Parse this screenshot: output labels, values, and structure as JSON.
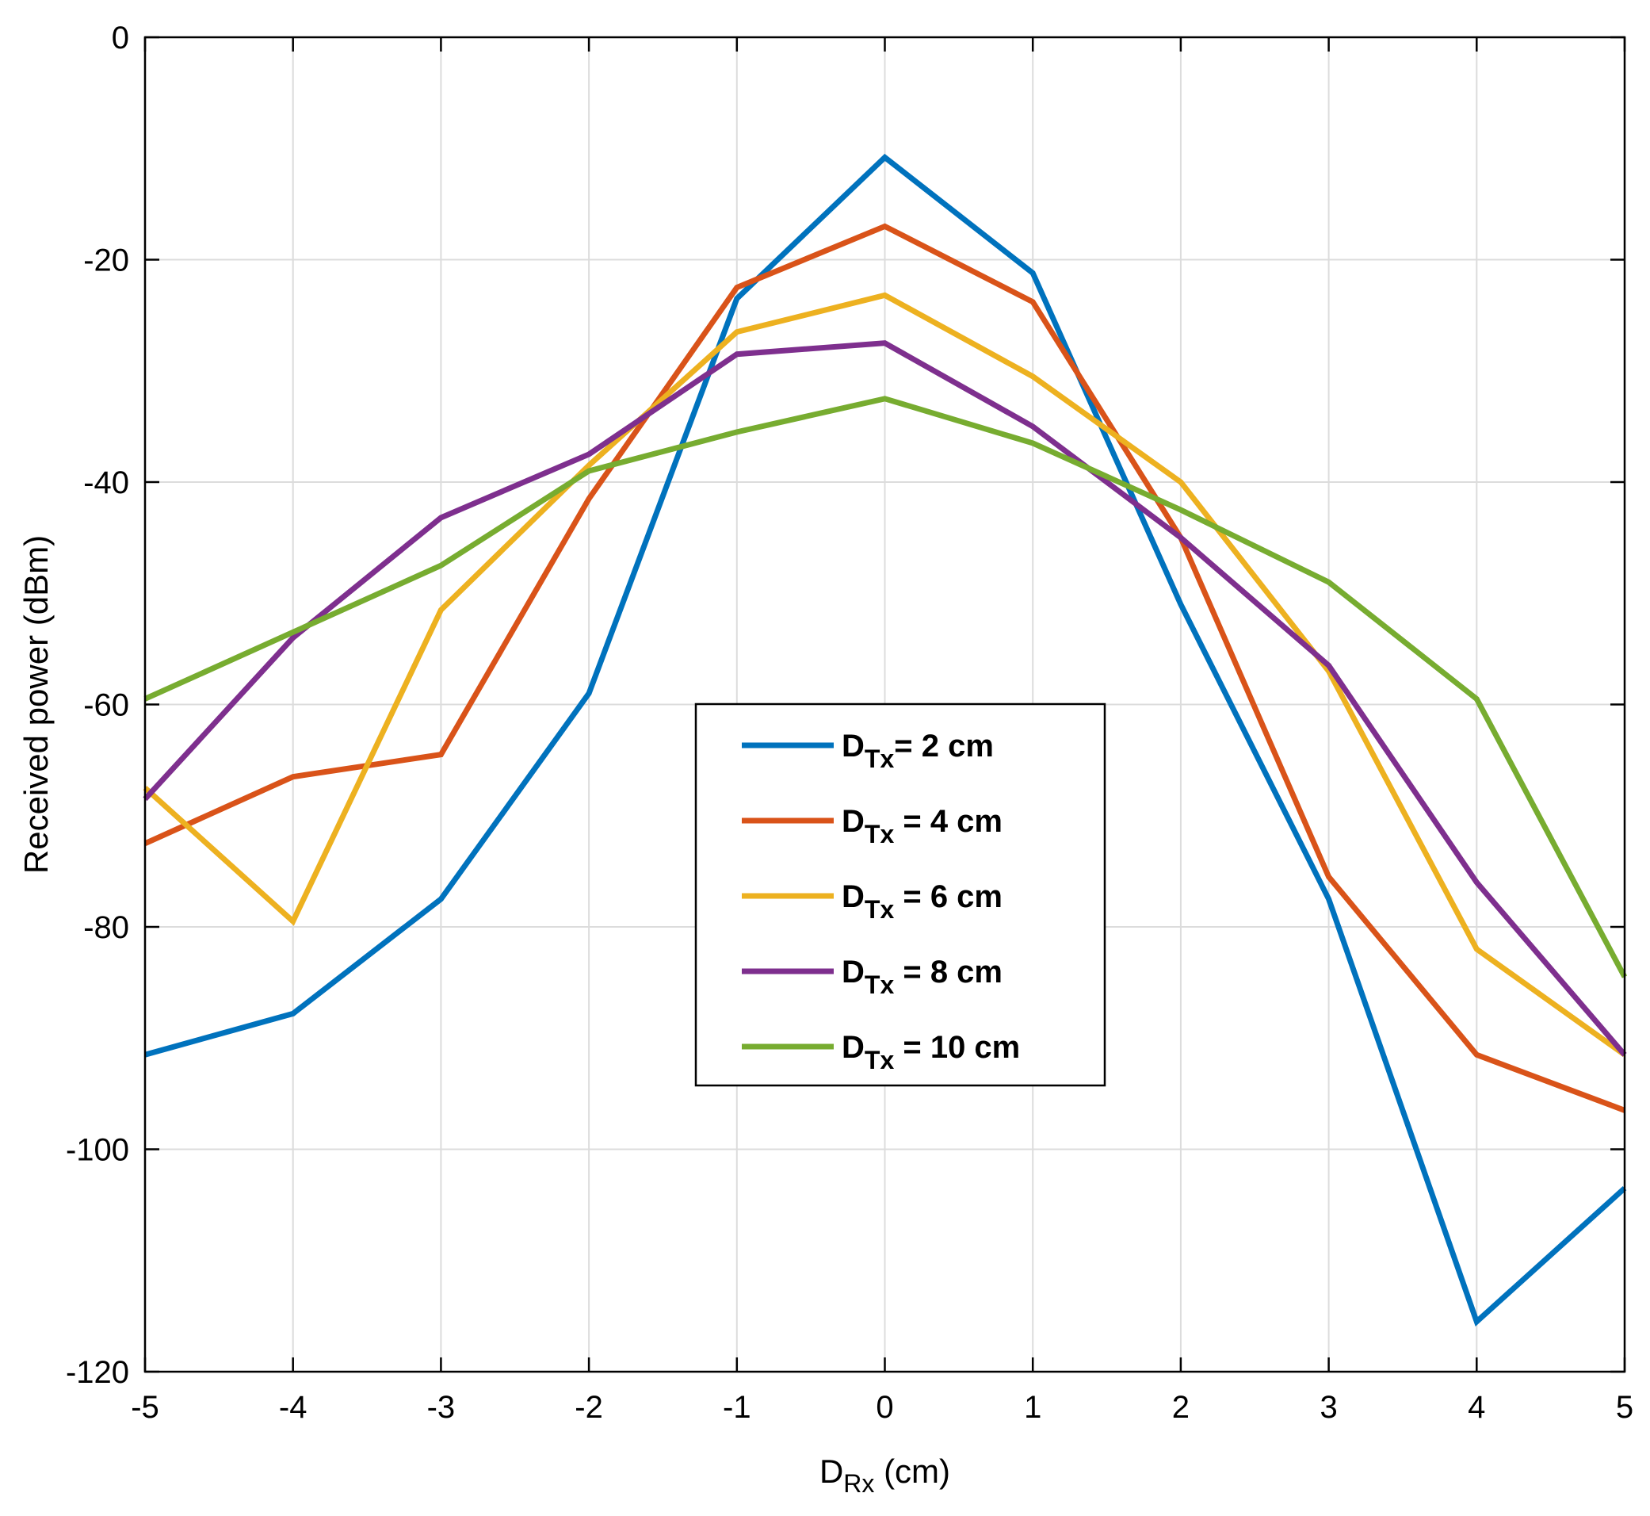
{
  "chart_data": {
    "type": "line",
    "title": "",
    "xlabel": {
      "main": "D",
      "sub": "Rx",
      "rest": " (cm)"
    },
    "ylabel": "Received power (dBm)",
    "xlim": [
      -5,
      5
    ],
    "ylim": [
      -120,
      0
    ],
    "xticks": [
      -5,
      -4,
      -3,
      -2,
      -1,
      0,
      1,
      2,
      3,
      4,
      5
    ],
    "yticks": [
      0,
      -20,
      -40,
      -60,
      -80,
      -100,
      -120
    ],
    "grid": true,
    "legend_position": "center",
    "x": [
      -5,
      -4,
      -3,
      -2,
      -1,
      0,
      1,
      2,
      3,
      4,
      5
    ],
    "series": [
      {
        "name": "D_Tx= 2 cm",
        "label_main": "D",
        "label_sub": "Tx",
        "label_rest": "= 2 cm",
        "color": "#0072BD",
        "values": [
          -91.5,
          -87.8,
          -77.5,
          -59.0,
          -23.5,
          -10.8,
          -21.2,
          -51.0,
          -77.5,
          -115.5,
          -103.5
        ]
      },
      {
        "name": "D_Tx = 4 cm",
        "label_main": "D",
        "label_sub": "Tx",
        "label_rest": " = 4 cm",
        "color": "#D95319",
        "values": [
          -72.5,
          -66.5,
          -64.5,
          -41.5,
          -22.5,
          -17.0,
          -23.8,
          -45.0,
          -75.5,
          -91.5,
          -96.5
        ]
      },
      {
        "name": "D_Tx = 6 cm",
        "label_main": "D",
        "label_sub": "Tx",
        "label_rest": " = 6 cm",
        "color": "#EDB120",
        "values": [
          -67.5,
          -79.5,
          -51.5,
          -38.5,
          -26.5,
          -23.2,
          -30.5,
          -40.0,
          -57.0,
          -82.0,
          -91.5
        ]
      },
      {
        "name": "D_Tx = 8 cm",
        "label_main": "D",
        "label_sub": "Tx",
        "label_rest": " = 8 cm",
        "color": "#7E2F8E",
        "values": [
          -68.5,
          -54.0,
          -43.2,
          -37.5,
          -28.5,
          -27.5,
          -35.0,
          -45.0,
          -56.5,
          -76.0,
          -91.5
        ]
      },
      {
        "name": "D_Tx = 10 cm",
        "label_main": "D",
        "label_sub": "Tx",
        "label_rest": " = 10 cm",
        "color": "#77AC30",
        "values": [
          -59.5,
          -53.5,
          -47.5,
          -39.0,
          -35.5,
          -32.5,
          -36.5,
          -42.5,
          -49.0,
          -59.5,
          -84.5
        ]
      }
    ]
  }
}
